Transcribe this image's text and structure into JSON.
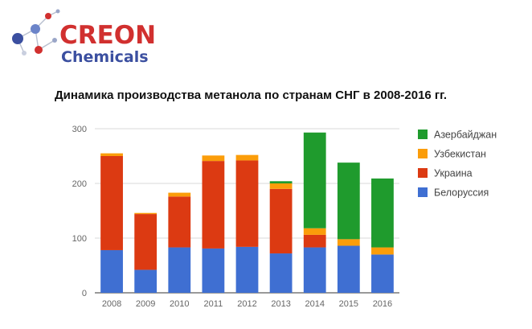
{
  "logo": {
    "line1": "CREON",
    "line2": "Chemicals"
  },
  "chart_data": {
    "type": "bar",
    "stacked": true,
    "title": "Динамика производства метанола по странам СНГ в 2008-2016 гг.",
    "categories": [
      "2008",
      "2009",
      "2010",
      "2011",
      "2012",
      "2013",
      "2014",
      "2015",
      "2016"
    ],
    "yticks": [
      0,
      100,
      200,
      300
    ],
    "ylim": [
      0,
      300
    ],
    "grid": true,
    "legend_position": "right",
    "series": [
      {
        "name": "Белоруссия",
        "color": "#3f6fd2",
        "values": [
          78,
          42,
          83,
          81,
          84,
          72,
          83,
          86,
          70
        ]
      },
      {
        "name": "Украина",
        "color": "#dc3a12",
        "values": [
          172,
          102,
          93,
          160,
          158,
          118,
          23,
          0,
          0
        ]
      },
      {
        "name": "Узбекистан",
        "color": "#fb9d0a",
        "values": [
          5,
          2,
          7,
          10,
          10,
          10,
          12,
          12,
          13
        ]
      },
      {
        "name": "Азербайджан",
        "color": "#1f9b2d",
        "values": [
          0,
          0,
          0,
          0,
          0,
          4,
          175,
          140,
          126
        ]
      }
    ]
  }
}
